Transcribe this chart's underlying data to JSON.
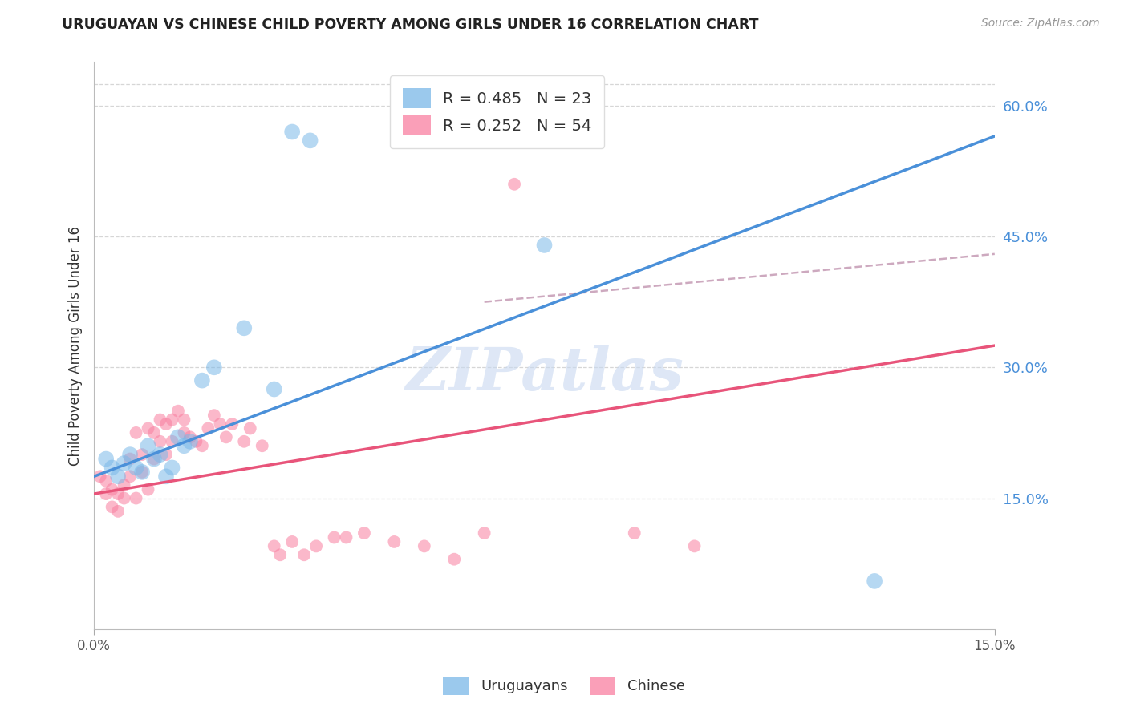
{
  "title": "URUGUAYAN VS CHINESE CHILD POVERTY AMONG GIRLS UNDER 16 CORRELATION CHART",
  "source": "Source: ZipAtlas.com",
  "ylabel": "Child Poverty Among Girls Under 16",
  "xlim": [
    0.0,
    0.15
  ],
  "ylim": [
    0.0,
    0.65
  ],
  "ytick_labels_right": [
    "15.0%",
    "30.0%",
    "45.0%",
    "60.0%"
  ],
  "yticks_right": [
    0.15,
    0.3,
    0.45,
    0.6
  ],
  "gridline_color": "#cccccc",
  "background_color": "#ffffff",
  "uruguayan_color": "#7ab8e8",
  "chinese_color": "#f97fa0",
  "blue_line_color": "#4a90d9",
  "pink_line_color": "#e8547a",
  "pink_dash_color": "#c8a0b8",
  "watermark": "ZIPatlas",
  "watermark_color": "#c8d8f0",
  "legend_R_uruguayan": "R = 0.485",
  "legend_N_uruguayan": "N = 23",
  "legend_R_chinese": "R = 0.252",
  "legend_N_chinese": "N = 54",
  "uruguayan_x": [
    0.002,
    0.003,
    0.004,
    0.005,
    0.006,
    0.007,
    0.008,
    0.009,
    0.01,
    0.011,
    0.012,
    0.013,
    0.014,
    0.015,
    0.016,
    0.018,
    0.02,
    0.025,
    0.03,
    0.033,
    0.036,
    0.075,
    0.13
  ],
  "uruguayan_y": [
    0.195,
    0.185,
    0.175,
    0.19,
    0.2,
    0.185,
    0.18,
    0.21,
    0.195,
    0.2,
    0.175,
    0.185,
    0.22,
    0.21,
    0.215,
    0.285,
    0.3,
    0.345,
    0.275,
    0.57,
    0.56,
    0.44,
    0.055
  ],
  "chinese_x": [
    0.001,
    0.002,
    0.002,
    0.003,
    0.003,
    0.004,
    0.004,
    0.005,
    0.005,
    0.006,
    0.006,
    0.007,
    0.007,
    0.008,
    0.008,
    0.009,
    0.009,
    0.01,
    0.01,
    0.011,
    0.011,
    0.012,
    0.012,
    0.013,
    0.013,
    0.014,
    0.015,
    0.015,
    0.016,
    0.017,
    0.018,
    0.019,
    0.02,
    0.021,
    0.022,
    0.023,
    0.025,
    0.026,
    0.028,
    0.03,
    0.031,
    0.033,
    0.035,
    0.037,
    0.04,
    0.042,
    0.045,
    0.05,
    0.055,
    0.06,
    0.065,
    0.07,
    0.09,
    0.1
  ],
  "chinese_y": [
    0.175,
    0.155,
    0.17,
    0.14,
    0.16,
    0.135,
    0.155,
    0.15,
    0.165,
    0.175,
    0.195,
    0.15,
    0.225,
    0.18,
    0.2,
    0.16,
    0.23,
    0.195,
    0.225,
    0.215,
    0.24,
    0.2,
    0.235,
    0.215,
    0.24,
    0.25,
    0.225,
    0.24,
    0.22,
    0.215,
    0.21,
    0.23,
    0.245,
    0.235,
    0.22,
    0.235,
    0.215,
    0.23,
    0.21,
    0.095,
    0.085,
    0.1,
    0.085,
    0.095,
    0.105,
    0.105,
    0.11,
    0.1,
    0.095,
    0.08,
    0.11,
    0.51,
    0.11,
    0.095
  ],
  "dot_size_uruguayan": 200,
  "dot_size_chinese": 130,
  "dot_alpha": 0.55,
  "blue_line_x": [
    0.0,
    0.15
  ],
  "blue_line_y": [
    0.175,
    0.565
  ],
  "pink_line_x": [
    0.0,
    0.15
  ],
  "pink_line_y": [
    0.155,
    0.325
  ],
  "dash_line_x": [
    0.065,
    0.15
  ],
  "dash_line_y": [
    0.375,
    0.43
  ]
}
